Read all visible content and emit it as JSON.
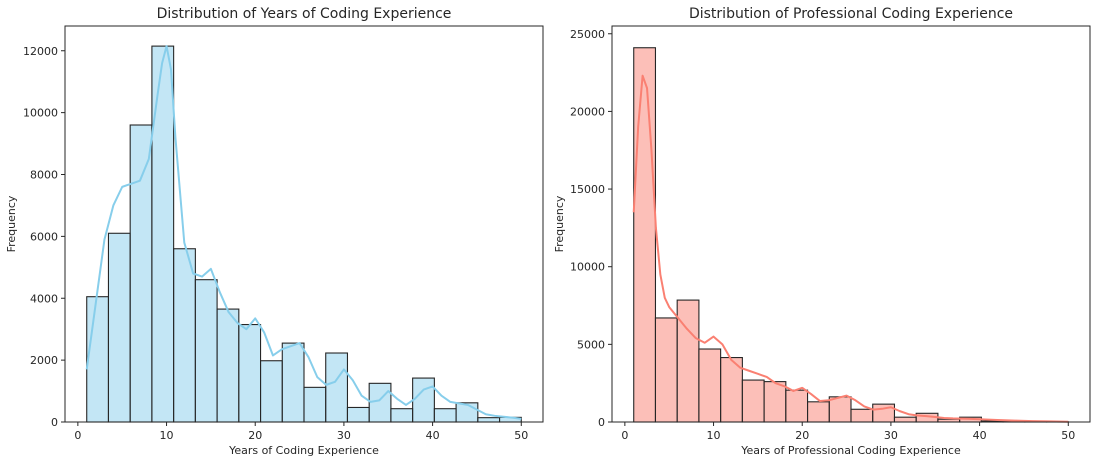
{
  "chart_data": [
    {
      "type": "bar",
      "title": "Distribution of Years of Coding Experience",
      "xlabel": "Years of Coding Experience",
      "ylabel": "Frequency",
      "xlim": [
        -1.45,
        52.45
      ],
      "ylim": [
        0,
        12800
      ],
      "xticks": [
        0,
        10,
        20,
        30,
        40,
        50
      ],
      "yticks": [
        0,
        2000,
        4000,
        6000,
        8000,
        10000,
        12000
      ],
      "grid": false,
      "bin_edges": [
        1,
        3.45,
        5.9,
        8.35,
        10.8,
        13.25,
        15.7,
        18.15,
        20.6,
        23.05,
        25.5,
        27.95,
        30.4,
        32.85,
        35.3,
        37.75,
        40.2,
        42.65,
        45.1,
        47.55,
        50
      ],
      "values": [
        4050,
        6100,
        9600,
        12150,
        5600,
        4600,
        3650,
        3150,
        1980,
        2550,
        1120,
        2230,
        470,
        1250,
        430,
        1420,
        430,
        620,
        140,
        150
      ],
      "kde": {
        "x": [
          1,
          2,
          3,
          4,
          5,
          6,
          7,
          8,
          9,
          9.5,
          10,
          10.5,
          11,
          12,
          13,
          14,
          15,
          16,
          17,
          18,
          19,
          20,
          21,
          22,
          23,
          24,
          25,
          26,
          27,
          28,
          29,
          30,
          31,
          32,
          33,
          34,
          35,
          36,
          37,
          38,
          39,
          40,
          41,
          42,
          43,
          44,
          45,
          46,
          47,
          48,
          49,
          50
        ],
        "y": [
          1700,
          3800,
          5900,
          7000,
          7600,
          7700,
          7800,
          8500,
          10600,
          11600,
          12150,
          11400,
          9200,
          5800,
          4800,
          4700,
          4950,
          4200,
          3550,
          3200,
          3000,
          3350,
          2900,
          2150,
          2350,
          2450,
          2550,
          2100,
          1450,
          1200,
          1300,
          1700,
          1350,
          850,
          650,
          700,
          1000,
          750,
          550,
          750,
          1050,
          1150,
          850,
          650,
          600,
          550,
          400,
          250,
          200,
          170,
          140,
          100
        ]
      },
      "colors": {
        "bar": "#87ceeb",
        "line": "#87ceeb",
        "edge": "#262626"
      }
    },
    {
      "type": "bar",
      "title": "Distribution of Professional Coding Experience",
      "xlabel": "Years of Professional Coding Experience",
      "ylabel": "Frequency",
      "xlim": [
        -1.45,
        52.45
      ],
      "ylim": [
        0,
        25500
      ],
      "xticks": [
        0,
        10,
        20,
        30,
        40,
        50
      ],
      "yticks": [
        0,
        5000,
        10000,
        15000,
        20000,
        25000
      ],
      "grid": false,
      "bin_edges": [
        1,
        3.45,
        5.9,
        8.35,
        10.8,
        13.25,
        15.7,
        18.15,
        20.6,
        23.05,
        25.5,
        27.95,
        30.4,
        32.85,
        35.3,
        37.75,
        40.2,
        42.65,
        45.1,
        47.55,
        50
      ],
      "values": [
        24100,
        6700,
        7850,
        4700,
        4150,
        2700,
        2600,
        2050,
        1300,
        1620,
        820,
        1150,
        310,
        560,
        180,
        310,
        60,
        40,
        20,
        15
      ],
      "kde": {
        "x": [
          1,
          1.5,
          2,
          2.5,
          3,
          3.5,
          4,
          4.5,
          5,
          6,
          7,
          8,
          9,
          10,
          11,
          12,
          13,
          14,
          15,
          16,
          17,
          18,
          19,
          20,
          21,
          22,
          23,
          24,
          25,
          26,
          27,
          28,
          29,
          30,
          31,
          32,
          33,
          34,
          35,
          36,
          37,
          38,
          39,
          40,
          42,
          44,
          46,
          48,
          50
        ],
        "y": [
          13500,
          19000,
          22300,
          21500,
          17500,
          12500,
          9500,
          8000,
          7400,
          6700,
          6000,
          5400,
          5100,
          5500,
          5000,
          4000,
          3500,
          3300,
          3100,
          2900,
          2500,
          2300,
          2000,
          2200,
          1800,
          1350,
          1400,
          1550,
          1700,
          1400,
          1000,
          800,
          850,
          950,
          700,
          500,
          420,
          380,
          320,
          260,
          230,
          220,
          200,
          180,
          130,
          90,
          60,
          40,
          20
        ]
      },
      "colors": {
        "bar": "#fa8072",
        "line": "#fa8072",
        "edge": "#262626"
      }
    }
  ]
}
